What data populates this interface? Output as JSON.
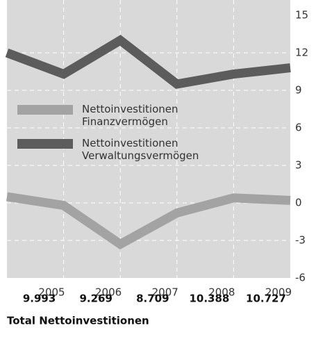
{
  "chart_data": {
    "type": "line",
    "categories": [
      null,
      "2005",
      "2006",
      "2007",
      "2008",
      "2009"
    ],
    "series": [
      {
        "name": "Nettoinvestitionen\nFinanzvermögen",
        "color": "#a3a3a3",
        "values": [
          0.5,
          -0.2,
          -3.3,
          -0.8,
          0.4,
          0.2
        ]
      },
      {
        "name": "Nettoinvestitionen\nVerwaltungsvermögen",
        "color": "#5c5c5c",
        "values": [
          12,
          10.3,
          13,
          9.5,
          10.3,
          10.8
        ]
      }
    ],
    "ylim": [
      -6,
      15
    ],
    "yticks": [
      -6,
      -3,
      0,
      3,
      6,
      9,
      12,
      15
    ],
    "grid": true,
    "total_values": [
      9.993,
      9.269,
      8.709,
      10.388,
      10.727
    ],
    "total_label": "Total Nettoinvestitionen"
  }
}
